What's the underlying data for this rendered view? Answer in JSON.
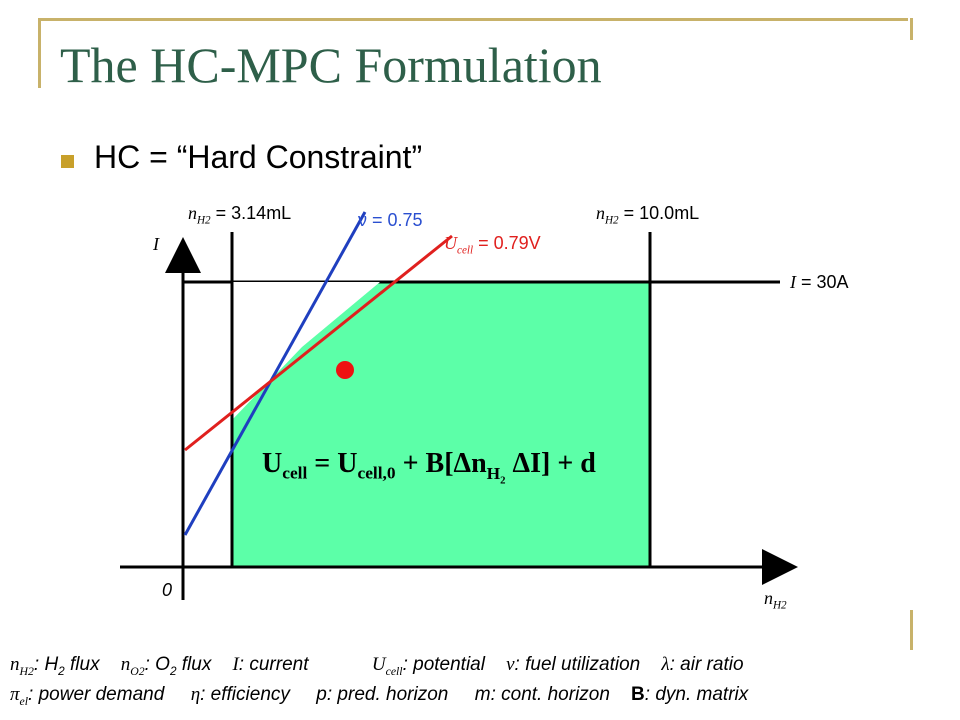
{
  "slide": {
    "title": "The HC-MPC Formulation",
    "bullet": "HC = “Hard Constraint”"
  },
  "diagram": {
    "label_n_low": "n",
    "label_n_low_sub": "H2",
    "label_n_low_val": " = 3.14mL",
    "label_n_high": "n",
    "label_n_high_sub": "H2",
    "label_n_high_val": " = 10.0mL",
    "label_nu": "ν = 0.75",
    "label_ucell": "U",
    "label_ucell_sub": "cell",
    "label_ucell_val": " = 0.79V",
    "label_I_axis": "I",
    "label_I_limit": "I",
    "label_I_limit_val": " = 30A",
    "label_origin": "0",
    "label_x_axis": "n",
    "label_x_axis_sub": "H2",
    "equation": {
      "lhs": "U",
      "lhs_sub": "cell",
      "eq": " = U",
      "rhs_sub": "cell,0",
      "plus": " + B[Δn",
      "dn_sub": "H",
      "dn_sub2": "2",
      "tail": "  ΔI] + d"
    },
    "colors": {
      "feasible_fill": "#5cffa8",
      "nu_line": "#1f3fbf",
      "ucell_line": "#e0201e",
      "nu_text": "#2a4fd0",
      "ucell_text": "#e0201e",
      "dot": "#ee1111",
      "frame": "#c8b26a",
      "title": "#2e5f49",
      "bullet": "#c8a02a"
    }
  },
  "legend": {
    "row1": [
      {
        "sym": "n",
        "sub": "H2",
        "text": ": H",
        "sub2": "2",
        "text2": " flux"
      },
      {
        "sym": "n",
        "sub": "O2",
        "text": ": O",
        "sub2": "2",
        "text2": " flux"
      },
      {
        "sym": "I",
        "text": ": current"
      },
      {
        "sym": "U",
        "sub": "cell",
        "text": ": potential"
      },
      {
        "sym": "ν",
        "text": ": fuel utilization"
      },
      {
        "sym": "λ",
        "text": ": air ratio"
      }
    ],
    "row2": [
      {
        "sym": "π",
        "sub": "el",
        "text": ": power demand"
      },
      {
        "sym": "η",
        "text": ": efficiency"
      },
      {
        "sym": "p",
        "text": ": pred. horizon"
      },
      {
        "sym": "m",
        "text": ": cont. horizon"
      },
      {
        "sym": "B",
        "text": ": dyn. matrix"
      }
    ]
  }
}
